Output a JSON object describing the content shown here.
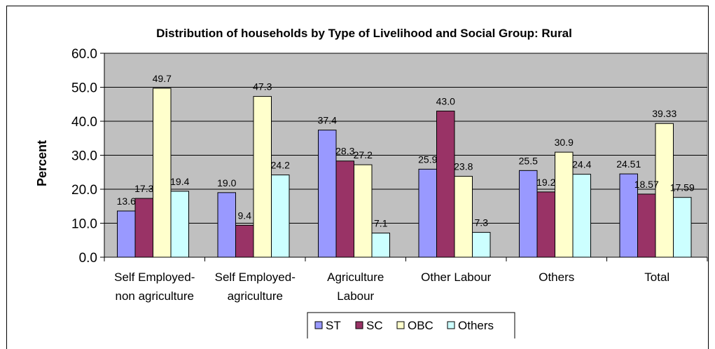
{
  "chart_data": {
    "type": "bar",
    "title": "Distribution of households by Type of Livelihood and Social Group: Rural",
    "xlabel": "",
    "ylabel": "Percent",
    "ylim": [
      0,
      60
    ],
    "yticks": [
      "0.0",
      "10.0",
      "20.0",
      "30.0",
      "40.0",
      "50.0",
      "60.0"
    ],
    "categories": [
      [
        "Self Employed-",
        "non agriculture"
      ],
      [
        "Self Employed-",
        "agriculture"
      ],
      [
        "Agriculture",
        "Labour"
      ],
      [
        "Other Labour"
      ],
      [
        "Others"
      ],
      [
        "Total"
      ]
    ],
    "series": [
      {
        "name": "ST",
        "color": "#9999ff",
        "values": [
          13.6,
          19.0,
          37.4,
          25.9,
          25.5,
          24.51
        ],
        "labels": [
          "13.6",
          "19.0",
          "37.4",
          "25.9",
          "25.5",
          "24.51"
        ]
      },
      {
        "name": "SC",
        "color": "#993366",
        "values": [
          17.3,
          9.4,
          28.3,
          43.0,
          19.2,
          18.57
        ],
        "labels": [
          "17.3",
          "9.4",
          "28.3",
          "43.0",
          "19.2",
          "18.57"
        ]
      },
      {
        "name": "OBC",
        "color": "#ffffcc",
        "values": [
          49.7,
          47.3,
          27.2,
          23.8,
          30.9,
          39.33
        ],
        "labels": [
          "49.7",
          "47.3",
          "27.2",
          "23.8",
          "30.9",
          "39.33"
        ]
      },
      {
        "name": "Others",
        "color": "#ccffff",
        "values": [
          19.4,
          24.2,
          7.1,
          7.3,
          24.4,
          17.59
        ],
        "labels": [
          "19.4",
          "24.2",
          "7.1",
          "7.3",
          "24.4",
          "17.59"
        ]
      }
    ],
    "plot_background": "#c0c0c0",
    "grid": true,
    "legend_position": "bottom"
  }
}
